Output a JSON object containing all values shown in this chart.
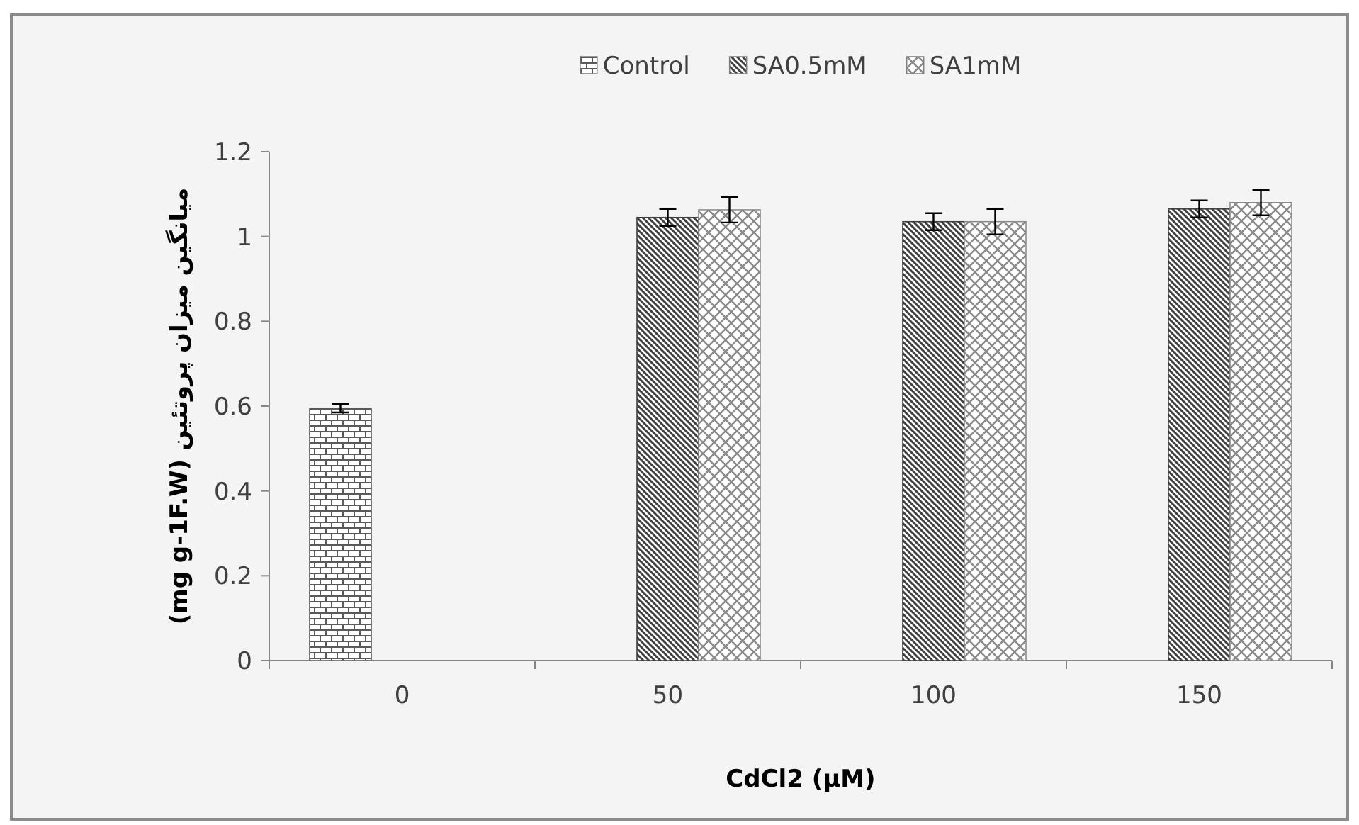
{
  "chart_data": {
    "type": "bar",
    "xlabel": "CdCl2 (µM)",
    "ylabel": "میانگین میزان پروتئین (mg g-1F.W)",
    "categories": [
      "0",
      "50",
      "100",
      "150"
    ],
    "ylim": [
      0,
      1.2
    ],
    "yticks": [
      0,
      0.2,
      0.4,
      0.6,
      0.8,
      1,
      1.2
    ],
    "legend": "top",
    "grid": false,
    "series": [
      {
        "name": "Control",
        "color": "#595959",
        "values": [
          0.595,
          null,
          null,
          null
        ],
        "errors": [
          0.01,
          null,
          null,
          null
        ]
      },
      {
        "name": "SA0.5mM",
        "color": "#404040",
        "values": [
          null,
          1.045,
          1.035,
          1.065
        ],
        "errors": [
          null,
          0.02,
          0.02,
          0.02
        ]
      },
      {
        "name": "SA1mM",
        "color": "#8c8c8c",
        "values": [
          null,
          1.063,
          1.035,
          1.08
        ],
        "errors": [
          null,
          0.03,
          0.03,
          0.03
        ]
      }
    ]
  }
}
